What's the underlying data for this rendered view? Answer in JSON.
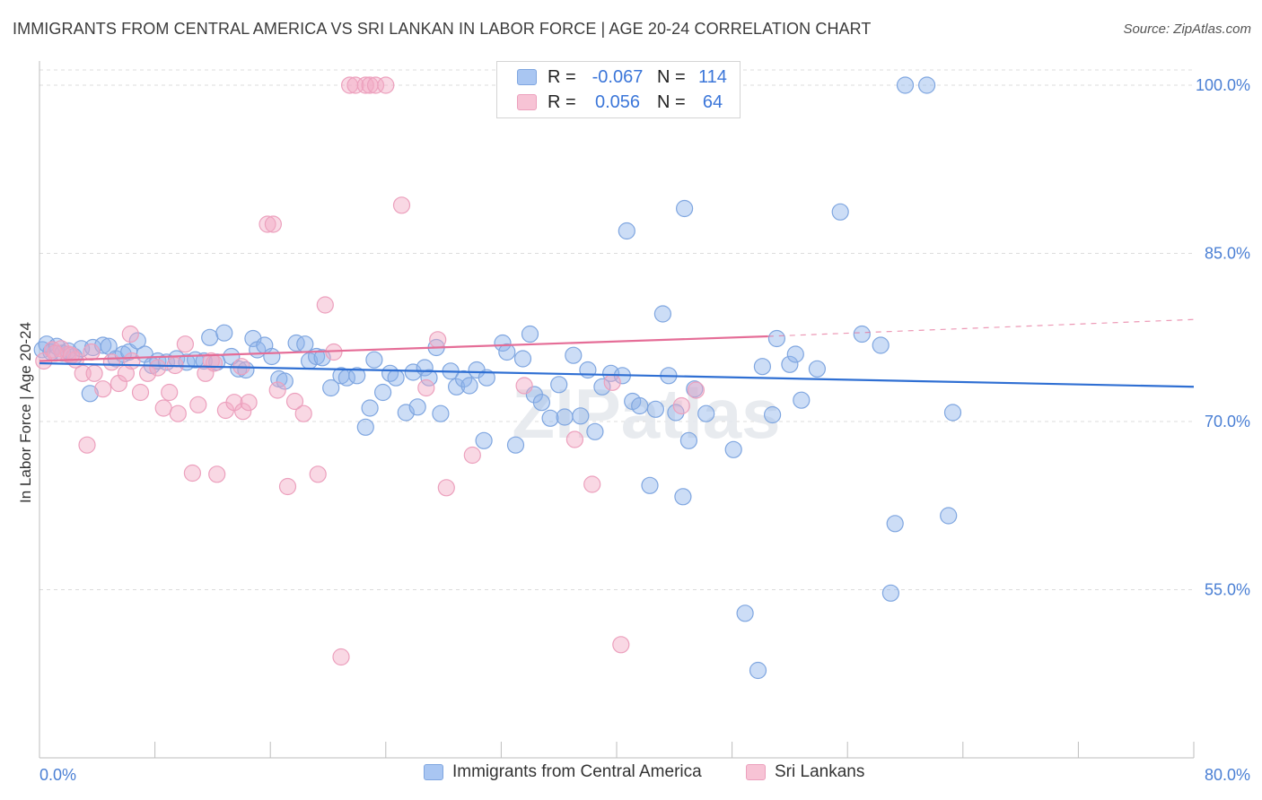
{
  "title": "IMMIGRANTS FROM CENTRAL AMERICA VS SRI LANKAN IN LABOR FORCE | AGE 20-24 CORRELATION CHART",
  "source": "Source: ZipAtlas.com",
  "watermark": "ZIPatlas",
  "legend": {
    "rows": [
      {
        "r_label": "R =",
        "r_value": "-0.067",
        "n_label": "N =",
        "n_value": "114"
      },
      {
        "r_label": "R =",
        "r_value": "0.056",
        "n_label": "N =",
        "n_value": "64"
      }
    ]
  },
  "chart_data": {
    "type": "scatter",
    "title": "IMMIGRANTS FROM CENTRAL AMERICA VS SRI LANKAN IN LABOR FORCE | AGE 20-24 CORRELATION CHART",
    "xlabel": "",
    "ylabel": "In Labor Force | Age 20-24",
    "xlim": [
      0,
      80
    ],
    "ylim": [
      40,
      102
    ],
    "x_tick_labels": [
      "0.0%",
      "80.0%"
    ],
    "y_ticks": [
      55,
      70,
      85,
      100
    ],
    "y_tick_labels": [
      "55.0%",
      "70.0%",
      "85.0%",
      "100.0%"
    ],
    "grid": true,
    "legend_position": "bottom-center",
    "series": [
      {
        "name": "Immigrants from Central America",
        "color": "#8fb4ec",
        "line_color": "#2f6fd3",
        "R": -0.067,
        "N": 114,
        "trend": {
          "x": [
            0,
            80
          ],
          "y": [
            75.2,
            73.1
          ]
        },
        "points": [
          [
            0.2,
            76.4
          ],
          [
            0.5,
            76.9
          ],
          [
            0.8,
            76.2
          ],
          [
            1.2,
            76.7
          ],
          [
            1.6,
            76.1
          ],
          [
            2.0,
            76.3
          ],
          [
            2.4,
            75.8
          ],
          [
            2.9,
            76.5
          ],
          [
            3.5,
            72.5
          ],
          [
            3.7,
            76.6
          ],
          [
            4.4,
            76.8
          ],
          [
            4.8,
            76.7
          ],
          [
            5.3,
            75.6
          ],
          [
            5.8,
            76.0
          ],
          [
            6.2,
            76.2
          ],
          [
            6.8,
            77.2
          ],
          [
            7.3,
            76.0
          ],
          [
            7.8,
            75.0
          ],
          [
            8.2,
            75.4
          ],
          [
            8.8,
            75.3
          ],
          [
            9.5,
            75.6
          ],
          [
            10.2,
            75.3
          ],
          [
            10.8,
            75.5
          ],
          [
            11.4,
            75.4
          ],
          [
            11.8,
            77.5
          ],
          [
            12.3,
            75.3
          ],
          [
            12.8,
            77.9
          ],
          [
            13.3,
            75.8
          ],
          [
            13.8,
            74.7
          ],
          [
            14.3,
            74.6
          ],
          [
            14.8,
            77.4
          ],
          [
            15.1,
            76.4
          ],
          [
            15.6,
            76.8
          ],
          [
            16.1,
            75.8
          ],
          [
            16.6,
            73.8
          ],
          [
            17.0,
            73.6
          ],
          [
            17.8,
            77.0
          ],
          [
            18.4,
            76.9
          ],
          [
            18.7,
            75.4
          ],
          [
            19.2,
            75.8
          ],
          [
            19.6,
            75.7
          ],
          [
            20.2,
            73.0
          ],
          [
            20.9,
            74.1
          ],
          [
            21.3,
            73.9
          ],
          [
            22.0,
            74.1
          ],
          [
            22.6,
            69.5
          ],
          [
            22.9,
            71.2
          ],
          [
            23.2,
            75.5
          ],
          [
            23.8,
            72.6
          ],
          [
            24.3,
            74.3
          ],
          [
            24.7,
            73.9
          ],
          [
            25.4,
            70.8
          ],
          [
            25.9,
            74.4
          ],
          [
            26.2,
            71.3
          ],
          [
            26.7,
            74.8
          ],
          [
            27.0,
            73.9
          ],
          [
            27.5,
            76.6
          ],
          [
            27.8,
            70.7
          ],
          [
            28.5,
            74.5
          ],
          [
            28.9,
            73.1
          ],
          [
            29.4,
            73.8
          ],
          [
            29.8,
            73.2
          ],
          [
            30.3,
            74.6
          ],
          [
            30.8,
            68.3
          ],
          [
            31.0,
            73.9
          ],
          [
            32.1,
            77.0
          ],
          [
            32.4,
            76.2
          ],
          [
            33.0,
            67.9
          ],
          [
            33.5,
            75.6
          ],
          [
            34.0,
            77.8
          ],
          [
            34.3,
            72.4
          ],
          [
            34.8,
            71.7
          ],
          [
            35.4,
            70.3
          ],
          [
            36.0,
            73.3
          ],
          [
            36.4,
            70.4
          ],
          [
            37.0,
            75.9
          ],
          [
            37.5,
            70.5
          ],
          [
            38.0,
            74.6
          ],
          [
            38.5,
            69.1
          ],
          [
            39.0,
            73.1
          ],
          [
            39.6,
            74.3
          ],
          [
            40.4,
            74.1
          ],
          [
            40.7,
            87.0
          ],
          [
            41.1,
            71.8
          ],
          [
            41.6,
            71.4
          ],
          [
            42.3,
            64.3
          ],
          [
            42.7,
            71.1
          ],
          [
            43.2,
            79.6
          ],
          [
            43.6,
            74.1
          ],
          [
            44.1,
            70.8
          ],
          [
            44.6,
            63.3
          ],
          [
            44.7,
            89.0
          ],
          [
            45.0,
            68.3
          ],
          [
            45.4,
            72.9
          ],
          [
            46.2,
            70.7
          ],
          [
            48.1,
            67.5
          ],
          [
            48.9,
            52.9
          ],
          [
            49.8,
            47.8
          ],
          [
            50.1,
            74.9
          ],
          [
            50.8,
            70.6
          ],
          [
            51.1,
            77.4
          ],
          [
            52.0,
            75.1
          ],
          [
            52.4,
            76.0
          ],
          [
            52.8,
            71.9
          ],
          [
            53.9,
            74.7
          ],
          [
            55.5,
            88.7
          ],
          [
            57.0,
            77.8
          ],
          [
            58.3,
            76.8
          ],
          [
            59.0,
            54.7
          ],
          [
            59.3,
            60.9
          ],
          [
            60.0,
            100.0
          ],
          [
            61.5,
            100.0
          ],
          [
            63.0,
            61.6
          ],
          [
            63.3,
            70.8
          ]
        ]
      },
      {
        "name": "Sri Lankans",
        "color": "#f2a9c3",
        "line_color": "#e56d97",
        "R": 0.056,
        "N": 64,
        "trend": {
          "x": [
            0,
            50.5
          ],
          "y": [
            75.4,
            77.6
          ]
        },
        "trend_dashed": {
          "x": [
            50.5,
            80
          ],
          "y": [
            77.6,
            79.1
          ]
        },
        "points": [
          [
            0.3,
            75.4
          ],
          [
            0.9,
            76.4
          ],
          [
            1.5,
            76.5
          ],
          [
            2.0,
            76.0
          ],
          [
            2.5,
            75.5
          ],
          [
            3.0,
            74.3
          ],
          [
            3.3,
            67.9
          ],
          [
            3.8,
            74.3
          ],
          [
            4.4,
            72.9
          ],
          [
            5.0,
            75.3
          ],
          [
            5.5,
            73.4
          ],
          [
            6.0,
            74.3
          ],
          [
            6.3,
            77.8
          ],
          [
            7.0,
            72.6
          ],
          [
            7.5,
            74.3
          ],
          [
            8.2,
            74.8
          ],
          [
            8.6,
            71.2
          ],
          [
            9.0,
            72.6
          ],
          [
            9.6,
            70.7
          ],
          [
            10.1,
            76.9
          ],
          [
            10.6,
            65.4
          ],
          [
            11.0,
            71.5
          ],
          [
            11.5,
            74.3
          ],
          [
            11.9,
            75.4
          ],
          [
            12.3,
            65.3
          ],
          [
            12.9,
            71.0
          ],
          [
            13.5,
            71.7
          ],
          [
            14.1,
            70.9
          ],
          [
            14.5,
            71.7
          ],
          [
            15.8,
            87.6
          ],
          [
            16.2,
            87.6
          ],
          [
            16.5,
            72.8
          ],
          [
            17.2,
            64.2
          ],
          [
            17.7,
            71.8
          ],
          [
            18.3,
            70.7
          ],
          [
            19.3,
            65.3
          ],
          [
            19.8,
            80.4
          ],
          [
            20.4,
            76.2
          ],
          [
            20.9,
            49.0
          ],
          [
            21.5,
            100.0
          ],
          [
            21.9,
            100.0
          ],
          [
            22.6,
            100.0
          ],
          [
            22.9,
            100.0
          ],
          [
            23.3,
            100.0
          ],
          [
            24.0,
            100.0
          ],
          [
            25.1,
            89.3
          ],
          [
            26.8,
            73.0
          ],
          [
            27.6,
            77.3
          ],
          [
            28.2,
            64.1
          ],
          [
            30.0,
            67.0
          ],
          [
            33.6,
            73.2
          ],
          [
            37.1,
            68.4
          ],
          [
            38.3,
            64.4
          ],
          [
            39.7,
            73.5
          ],
          [
            40.3,
            50.1
          ],
          [
            44.5,
            71.4
          ],
          [
            45.5,
            72.8
          ],
          [
            1.1,
            76.1
          ],
          [
            2.2,
            75.9
          ],
          [
            6.4,
            75.4
          ],
          [
            9.4,
            75.0
          ],
          [
            12.1,
            75.2
          ],
          [
            14.0,
            74.9
          ],
          [
            3.6,
            76.2
          ]
        ]
      }
    ]
  },
  "bottom_legend": [
    {
      "label": "Immigrants from Central America",
      "color": "#a9c6f2",
      "border": "#7fa6e0"
    },
    {
      "label": "Sri Lankans",
      "color": "#f7c3d5",
      "border": "#eca0bd"
    }
  ],
  "legend_colors": [
    {
      "fill": "#a9c6f2",
      "border": "#7fa6e0"
    },
    {
      "fill": "#f7c3d5",
      "border": "#eca0bd"
    }
  ]
}
